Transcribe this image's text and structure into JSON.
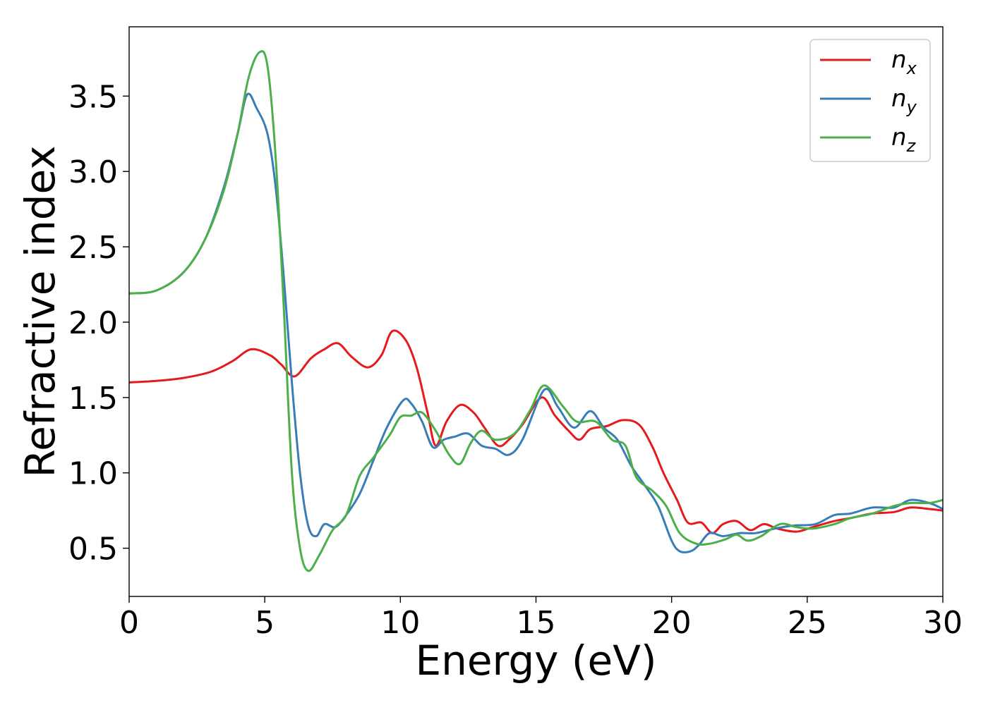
{
  "chart_data": {
    "type": "line",
    "title": "",
    "xlabel": "Energy (eV)",
    "ylabel": "Refractive index",
    "xlim": [
      0,
      30
    ],
    "ylim": [
      0.18,
      3.96
    ],
    "xticks": [
      0,
      5,
      10,
      15,
      20,
      25,
      30
    ],
    "yticks": [
      0.5,
      1.0,
      1.5,
      2.0,
      2.5,
      3.0,
      3.5
    ],
    "xtick_labels": [
      "0",
      "5",
      "10",
      "15",
      "20",
      "25",
      "30"
    ],
    "ytick_labels": [
      "0.5",
      "1.0",
      "1.5",
      "2.0",
      "2.5",
      "3.0",
      "3.5"
    ],
    "grid": false,
    "legend_position": "top-right",
    "series": [
      {
        "name": "n_x",
        "label_base": "n",
        "label_sub": "x",
        "color": "#e41a1c",
        "points": [
          [
            0,
            1.6
          ],
          [
            1,
            1.61
          ],
          [
            2,
            1.63
          ],
          [
            3,
            1.67
          ],
          [
            3.8,
            1.74
          ],
          [
            4.5,
            1.82
          ],
          [
            5.2,
            1.78
          ],
          [
            5.6,
            1.72
          ],
          [
            6.1,
            1.64
          ],
          [
            6.7,
            1.76
          ],
          [
            7.2,
            1.82
          ],
          [
            7.7,
            1.86
          ],
          [
            8.2,
            1.77
          ],
          [
            8.8,
            1.7
          ],
          [
            9.3,
            1.78
          ],
          [
            9.7,
            1.94
          ],
          [
            10.2,
            1.88
          ],
          [
            10.6,
            1.7
          ],
          [
            11,
            1.4
          ],
          [
            11.3,
            1.18
          ],
          [
            11.7,
            1.34
          ],
          [
            12.2,
            1.45
          ],
          [
            12.7,
            1.4
          ],
          [
            13.1,
            1.3
          ],
          [
            13.6,
            1.18
          ],
          [
            14,
            1.22
          ],
          [
            14.5,
            1.32
          ],
          [
            15.2,
            1.5
          ],
          [
            15.7,
            1.38
          ],
          [
            16.2,
            1.28
          ],
          [
            16.6,
            1.22
          ],
          [
            17,
            1.29
          ],
          [
            17.6,
            1.31
          ],
          [
            18.2,
            1.35
          ],
          [
            18.8,
            1.32
          ],
          [
            19.3,
            1.17
          ],
          [
            19.7,
            1.0
          ],
          [
            20.2,
            0.82
          ],
          [
            20.6,
            0.67
          ],
          [
            21.1,
            0.67
          ],
          [
            21.5,
            0.6
          ],
          [
            21.9,
            0.66
          ],
          [
            22.4,
            0.68
          ],
          [
            22.9,
            0.62
          ],
          [
            23.4,
            0.66
          ],
          [
            23.9,
            0.63
          ],
          [
            24.6,
            0.61
          ],
          [
            25.2,
            0.64
          ],
          [
            26,
            0.68
          ],
          [
            26.6,
            0.7
          ],
          [
            27.4,
            0.73
          ],
          [
            28.2,
            0.74
          ],
          [
            28.8,
            0.77
          ],
          [
            29.5,
            0.76
          ],
          [
            30,
            0.75
          ]
        ]
      },
      {
        "name": "n_y",
        "label_base": "n",
        "label_sub": "y",
        "color": "#377eb8",
        "points": [
          [
            0,
            2.19
          ],
          [
            1,
            2.21
          ],
          [
            2,
            2.33
          ],
          [
            2.8,
            2.55
          ],
          [
            3.5,
            2.9
          ],
          [
            4,
            3.25
          ],
          [
            4.35,
            3.51
          ],
          [
            4.7,
            3.42
          ],
          [
            5.1,
            3.25
          ],
          [
            5.4,
            2.9
          ],
          [
            5.7,
            2.3
          ],
          [
            6,
            1.6
          ],
          [
            6.3,
            1.0
          ],
          [
            6.6,
            0.65
          ],
          [
            6.9,
            0.58
          ],
          [
            7.2,
            0.66
          ],
          [
            7.6,
            0.64
          ],
          [
            8,
            0.72
          ],
          [
            8.5,
            0.86
          ],
          [
            9,
            1.08
          ],
          [
            9.5,
            1.3
          ],
          [
            10.1,
            1.48
          ],
          [
            10.4,
            1.46
          ],
          [
            10.8,
            1.34
          ],
          [
            11.2,
            1.17
          ],
          [
            11.6,
            1.22
          ],
          [
            12,
            1.24
          ],
          [
            12.5,
            1.26
          ],
          [
            13,
            1.18
          ],
          [
            13.5,
            1.16
          ],
          [
            14,
            1.12
          ],
          [
            14.5,
            1.22
          ],
          [
            15.3,
            1.55
          ],
          [
            15.8,
            1.44
          ],
          [
            16.4,
            1.3
          ],
          [
            17,
            1.41
          ],
          [
            17.5,
            1.3
          ],
          [
            18,
            1.22
          ],
          [
            18.5,
            1.05
          ],
          [
            19,
            0.92
          ],
          [
            19.5,
            0.78
          ],
          [
            20,
            0.55
          ],
          [
            20.3,
            0.48
          ],
          [
            20.7,
            0.48
          ],
          [
            21,
            0.52
          ],
          [
            21.4,
            0.6
          ],
          [
            21.9,
            0.58
          ],
          [
            22.5,
            0.6
          ],
          [
            23.1,
            0.6
          ],
          [
            23.8,
            0.63
          ],
          [
            24.5,
            0.65
          ],
          [
            25.3,
            0.66
          ],
          [
            26,
            0.72
          ],
          [
            26.6,
            0.73
          ],
          [
            27.4,
            0.77
          ],
          [
            28.2,
            0.77
          ],
          [
            28.8,
            0.82
          ],
          [
            29.5,
            0.8
          ],
          [
            30,
            0.76
          ]
        ]
      },
      {
        "name": "n_z",
        "label_base": "n",
        "label_sub": "z",
        "color": "#4daf4a",
        "points": [
          [
            0,
            2.19
          ],
          [
            1,
            2.21
          ],
          [
            2,
            2.33
          ],
          [
            2.8,
            2.55
          ],
          [
            3.5,
            2.88
          ],
          [
            4,
            3.25
          ],
          [
            4.4,
            3.62
          ],
          [
            4.8,
            3.79
          ],
          [
            5.1,
            3.7
          ],
          [
            5.4,
            3.1
          ],
          [
            5.7,
            2.1
          ],
          [
            6,
            1.0
          ],
          [
            6.3,
            0.5
          ],
          [
            6.6,
            0.35
          ],
          [
            7,
            0.45
          ],
          [
            7.5,
            0.62
          ],
          [
            8,
            0.72
          ],
          [
            8.5,
            0.98
          ],
          [
            9,
            1.1
          ],
          [
            9.6,
            1.25
          ],
          [
            10,
            1.37
          ],
          [
            10.4,
            1.38
          ],
          [
            10.8,
            1.4
          ],
          [
            11.3,
            1.28
          ],
          [
            11.8,
            1.12
          ],
          [
            12.2,
            1.06
          ],
          [
            12.6,
            1.2
          ],
          [
            13,
            1.28
          ],
          [
            13.5,
            1.22
          ],
          [
            14.2,
            1.26
          ],
          [
            14.8,
            1.42
          ],
          [
            15.3,
            1.58
          ],
          [
            16,
            1.44
          ],
          [
            16.5,
            1.34
          ],
          [
            17.2,
            1.34
          ],
          [
            17.8,
            1.22
          ],
          [
            18.3,
            1.18
          ],
          [
            18.7,
            0.97
          ],
          [
            19.3,
            0.88
          ],
          [
            19.8,
            0.78
          ],
          [
            20.3,
            0.6
          ],
          [
            20.9,
            0.53
          ],
          [
            21.4,
            0.53
          ],
          [
            22,
            0.56
          ],
          [
            22.4,
            0.59
          ],
          [
            22.8,
            0.55
          ],
          [
            23.3,
            0.58
          ],
          [
            24,
            0.66
          ],
          [
            24.6,
            0.64
          ],
          [
            25.2,
            0.63
          ],
          [
            26,
            0.66
          ],
          [
            26.6,
            0.7
          ],
          [
            27.4,
            0.73
          ],
          [
            28.2,
            0.78
          ],
          [
            28.8,
            0.8
          ],
          [
            29.5,
            0.8
          ],
          [
            30,
            0.82
          ]
        ]
      }
    ]
  }
}
